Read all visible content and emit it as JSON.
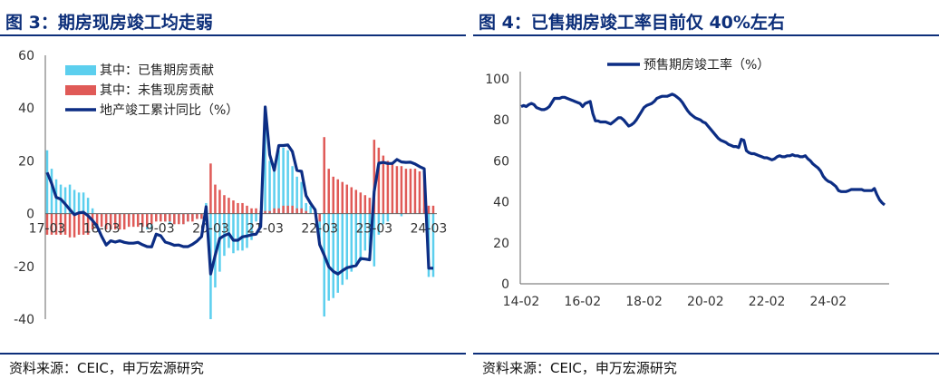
{
  "colors": {
    "title": "#0d2f7a",
    "line": "#0c2d84",
    "bar_sold": "#5ccfee",
    "bar_unsold": "#e05a57",
    "axis": "#666666"
  },
  "left": {
    "title": "图 3：期房现房竣工均走弱",
    "source": "资料来源：CEIC，申万宏源研究",
    "chart_data": {
      "type": "bar+line",
      "ylim": [
        -40,
        60
      ],
      "yticks": [
        -40,
        -20,
        0,
        20,
        40,
        60
      ],
      "ytick_labels": [
        "-40",
        "-20",
        "0",
        "20",
        "40",
        "60"
      ],
      "xtick_labels": [
        "17-03",
        "18-03",
        "19-03",
        "20-03",
        "21-03",
        "22-03",
        "23-03",
        "24-03"
      ],
      "xtick_index": [
        0,
        12,
        24,
        36,
        48,
        60,
        72,
        84
      ],
      "legend": [
        "其中：已售期房贡献",
        "其中：未售现房贡献",
        "地产竣工累计同比（%）"
      ],
      "legend_position": "top-left",
      "series": [
        {
          "name": "其中：已售期房贡献",
          "kind": "bar",
          "values": [
            24,
            17,
            13,
            11,
            10,
            11,
            9,
            8,
            8,
            6,
            2,
            0,
            -1,
            -3,
            -6,
            -4,
            -5,
            -5,
            -4,
            -4,
            -4,
            -5,
            -6,
            -6,
            -2,
            -2,
            -3,
            -4,
            -4,
            -3,
            -4,
            -3,
            -2,
            -2,
            -2,
            4,
            -40,
            -28,
            -22,
            -16,
            -13,
            -15,
            -14,
            -14,
            -13,
            -10,
            -3,
            -5,
            38,
            20,
            19,
            24,
            25,
            24,
            18,
            14,
            12,
            4,
            3,
            2,
            -10,
            -39,
            -33,
            -32,
            -30,
            -27,
            -25,
            -22,
            -20,
            -18,
            -14,
            -14,
            -20,
            -8,
            -4,
            -3,
            0,
            1,
            -1,
            0,
            0,
            1,
            2,
            2,
            -24,
            -24
          ]
        },
        {
          "name": "其中：未售现房贡献",
          "kind": "bar",
          "values": [
            -8,
            -8,
            -8,
            -8,
            -8,
            -9,
            -9,
            -8,
            -8,
            -8,
            -6,
            -5,
            -5,
            -6,
            -6,
            -6,
            -6,
            -6,
            -5,
            -5,
            -5,
            -5,
            -5,
            -4,
            -3,
            -3,
            -3,
            -3,
            -4,
            -4,
            -4,
            -3,
            -3,
            -2,
            -2,
            1,
            19,
            11,
            9,
            7,
            6,
            5,
            4,
            4,
            3,
            2,
            2,
            1,
            1,
            1,
            2,
            2,
            3,
            3,
            3,
            2,
            2,
            1,
            0,
            0,
            -3,
            29,
            17,
            14,
            13,
            12,
            11,
            10,
            9,
            8,
            7,
            6,
            28,
            25,
            22,
            20,
            19,
            18,
            18,
            17,
            17,
            17,
            16,
            16,
            3,
            3
          ]
        },
        {
          "name": "地产竣工累计同比（%）",
          "kind": "line",
          "values": [
            15.6,
            11.4,
            6.2,
            5.5,
            3.6,
            1.5,
            -0.4,
            0.3,
            0.5,
            -0.8,
            -2.6,
            -4.8,
            -8.6,
            -11.9,
            -10.3,
            -10.8,
            -10.3,
            -10.9,
            -11.2,
            -11.2,
            -10.9,
            -11.8,
            -12.5,
            -12.6,
            -7.8,
            -8.4,
            -10.8,
            -11.3,
            -12.0,
            -11.9,
            -12.5,
            -12.5,
            -11.6,
            -10.4,
            -8.7,
            2.6,
            -22.9,
            -15.8,
            -9.4,
            -8.3,
            -7.6,
            -10.1,
            -10.1,
            -8.8,
            -8.5,
            -8.0,
            -7.8,
            -4.9,
            40.4,
            22.3,
            16.4,
            25.8,
            25.8,
            26.0,
            23.5,
            16.4,
            16.0,
            6.8,
            3.9,
            1.4,
            -11.8,
            -15.7,
            -20.1,
            -21.9,
            -22.9,
            -21.6,
            -20.5,
            -20.1,
            -19.7,
            -17.0,
            -17.2,
            -17.5,
            8.3,
            19.1,
            19.4,
            19.0,
            19.0,
            20.5,
            19.6,
            19.4,
            19.5,
            18.8,
            17.8,
            17.0,
            -20.7,
            -20.7
          ]
        }
      ]
    }
  },
  "right": {
    "title": "图 4：已售期房竣工率目前仅 40%左右",
    "source": "资料来源：CEIC，申万宏源研究",
    "chart_data": {
      "type": "line",
      "ylim": [
        0,
        100
      ],
      "yticks": [
        0,
        20,
        40,
        60,
        80,
        100
      ],
      "ytick_labels": [
        "0",
        "20",
        "40",
        "60",
        "80",
        "100"
      ],
      "xtick_labels": [
        "14-02",
        "16-02",
        "18-02",
        "20-02",
        "22-02",
        "24-02"
      ],
      "xtick_index": [
        0,
        24,
        48,
        72,
        96,
        120
      ],
      "legend": [
        "预售期房竣工率（%）"
      ],
      "legend_position": "top",
      "series": [
        {
          "name": "预售期房竣工率（%）",
          "kind": "line",
          "values": [
            86.5,
            87.0,
            86.5,
            87.5,
            88.0,
            87.5,
            86.0,
            85.5,
            85.0,
            85.0,
            85.5,
            86.5,
            88.5,
            90.5,
            90.5,
            90.5,
            91.0,
            91.0,
            90.5,
            90.0,
            89.5,
            89.0,
            88.5,
            88.0,
            86.5,
            88.0,
            88.5,
            89.0,
            83.0,
            79.5,
            79.5,
            79.0,
            79.0,
            79.0,
            78.5,
            78.0,
            79.0,
            80.0,
            81.0,
            81.0,
            80.0,
            78.5,
            77.0,
            77.5,
            78.5,
            80.0,
            82.0,
            84.0,
            86.0,
            87.0,
            87.5,
            88.0,
            89.0,
            90.5,
            91.0,
            91.5,
            91.5,
            91.5,
            92.0,
            92.5,
            92.0,
            91.0,
            90.0,
            88.5,
            86.5,
            84.5,
            83.0,
            82.0,
            81.0,
            80.5,
            80.0,
            79.0,
            78.5,
            77.0,
            75.5,
            74.0,
            72.5,
            71.0,
            70.0,
            69.5,
            69.0,
            68.0,
            67.5,
            67.0,
            67.0,
            66.5,
            70.5,
            70.0,
            65.0,
            64.0,
            63.5,
            63.5,
            63.0,
            62.5,
            62.0,
            61.5,
            61.5,
            61.0,
            60.5,
            61.0,
            62.0,
            62.5,
            62.0,
            62.0,
            62.5,
            62.5,
            63.0,
            62.5,
            62.5,
            62.0,
            62.0,
            62.5,
            61.0,
            60.0,
            58.5,
            57.5,
            56.5,
            55.0,
            52.5,
            51.0,
            50.0,
            49.5,
            48.5,
            47.5,
            45.5,
            45.0,
            45.0,
            45.0,
            45.5,
            46.0,
            46.0,
            46.0,
            46.0,
            46.0,
            45.5,
            45.5,
            45.5,
            45.5,
            46.5,
            43.5,
            41.0,
            39.5,
            38.5
          ]
        }
      ]
    }
  }
}
